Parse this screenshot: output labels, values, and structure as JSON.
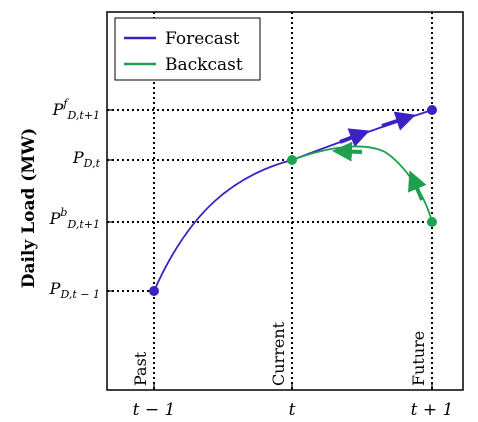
{
  "y_axis_label": "Daily Load (MW)",
  "legend": {
    "forecast_label": "Forecast",
    "backcast_label": "Backcast",
    "forecast_color": "#3a22c4",
    "backcast_color": "#1fa04f"
  },
  "y_ticks": {
    "pf": {
      "main": "P",
      "sup": "f",
      "sub": "D,t+1"
    },
    "pt": {
      "main": "P",
      "sub": "D,t"
    },
    "pb": {
      "main": "P",
      "sup": "b",
      "sub": "D,t+1"
    },
    "pm": {
      "main": "P",
      "sub": "D,t − 1"
    }
  },
  "x_ticks": {
    "prev": "t − 1",
    "now": "t",
    "next": "t + 1"
  },
  "vertical_labels": {
    "past": "Past",
    "current": "Current",
    "future": "Future"
  }
}
